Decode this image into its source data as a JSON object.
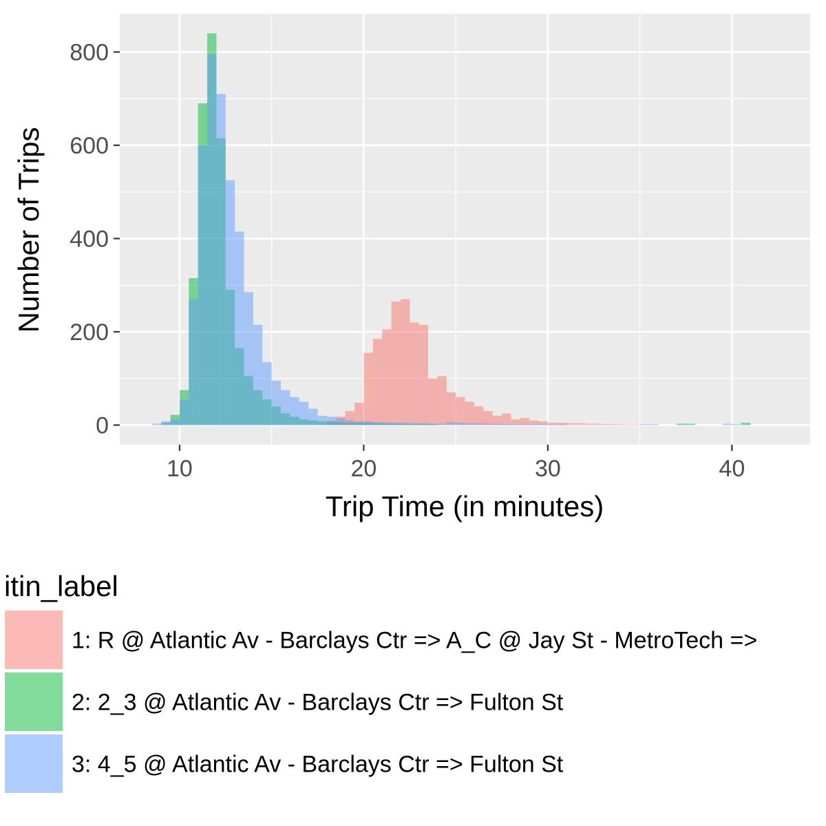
{
  "chart_data": {
    "type": "histogram",
    "title": "",
    "xlabel": "Trip Time (in minutes)",
    "ylabel": "Number of Trips",
    "xlim": [
      6.75,
      44.25
    ],
    "ylim": [
      -42,
      882
    ],
    "x_ticks": [
      10,
      20,
      30,
      40
    ],
    "y_ticks": [
      0,
      200,
      400,
      600,
      800
    ],
    "grid": true,
    "bin_width": 0.5,
    "legend": {
      "title": "itin_label",
      "placement": "bottom"
    },
    "series": [
      {
        "name": "1: R @ Atlantic Av - Barclays Ctr => A_C @ Jay St - MetroTech =>",
        "color": "#F8766D",
        "bins": [
          [
            18.25,
            10
          ],
          [
            18.75,
            18
          ],
          [
            19.25,
            30
          ],
          [
            19.75,
            48
          ],
          [
            20.25,
            155
          ],
          [
            20.75,
            185
          ],
          [
            21.25,
            205
          ],
          [
            21.75,
            265
          ],
          [
            22.25,
            270
          ],
          [
            22.75,
            220
          ],
          [
            23.25,
            215
          ],
          [
            23.75,
            100
          ],
          [
            24.25,
            105
          ],
          [
            24.75,
            70
          ],
          [
            25.25,
            60
          ],
          [
            25.75,
            50
          ],
          [
            26.25,
            40
          ],
          [
            26.75,
            30
          ],
          [
            27.25,
            20
          ],
          [
            27.75,
            25
          ],
          [
            28.25,
            12
          ],
          [
            28.75,
            15
          ],
          [
            29.25,
            10
          ],
          [
            29.75,
            8
          ],
          [
            30.25,
            5
          ],
          [
            30.75,
            5
          ],
          [
            31.25,
            4
          ],
          [
            31.75,
            4
          ],
          [
            32.25,
            3
          ],
          [
            32.75,
            3
          ],
          [
            33.25,
            2
          ],
          [
            33.75,
            2
          ],
          [
            34.25,
            1
          ],
          [
            34.75,
            1
          ]
        ]
      },
      {
        "name": "2: 2_3 @ Atlantic Av - Barclays Ctr => Fulton St",
        "color": "#00BA38",
        "bins": [
          [
            9.25,
            5
          ],
          [
            9.75,
            22
          ],
          [
            10.25,
            75
          ],
          [
            10.75,
            315
          ],
          [
            11.25,
            690
          ],
          [
            11.75,
            840
          ],
          [
            12.25,
            615
          ],
          [
            12.75,
            290
          ],
          [
            13.25,
            165
          ],
          [
            13.75,
            105
          ],
          [
            14.25,
            75
          ],
          [
            14.75,
            55
          ],
          [
            15.25,
            40
          ],
          [
            15.75,
            25
          ],
          [
            16.25,
            18
          ],
          [
            16.75,
            12
          ],
          [
            17.25,
            10
          ],
          [
            17.75,
            8
          ],
          [
            18.25,
            7
          ],
          [
            18.75,
            6
          ],
          [
            19.25,
            5
          ],
          [
            19.75,
            5
          ],
          [
            20.25,
            4
          ],
          [
            20.75,
            4
          ],
          [
            21.25,
            3
          ],
          [
            21.75,
            3
          ],
          [
            22.25,
            2
          ],
          [
            22.75,
            2
          ],
          [
            23.25,
            2
          ],
          [
            23.75,
            1
          ],
          [
            37.25,
            3
          ],
          [
            37.75,
            3
          ],
          [
            40.75,
            5
          ]
        ]
      },
      {
        "name": "3: 4_5 @ Atlantic Av - Barclays Ctr => Fulton St",
        "color": "#619CFF",
        "bins": [
          [
            8.75,
            3
          ],
          [
            9.25,
            8
          ],
          [
            9.75,
            12
          ],
          [
            10.25,
            55
          ],
          [
            10.75,
            270
          ],
          [
            11.25,
            600
          ],
          [
            11.75,
            795
          ],
          [
            12.25,
            710
          ],
          [
            12.75,
            525
          ],
          [
            13.25,
            415
          ],
          [
            13.75,
            285
          ],
          [
            14.25,
            215
          ],
          [
            14.75,
            135
          ],
          [
            15.25,
            95
          ],
          [
            15.75,
            75
          ],
          [
            16.25,
            60
          ],
          [
            16.75,
            50
          ],
          [
            17.25,
            35
          ],
          [
            17.75,
            20
          ],
          [
            18.25,
            18
          ],
          [
            18.75,
            15
          ],
          [
            19.25,
            10
          ],
          [
            19.75,
            8
          ],
          [
            20.25,
            8
          ],
          [
            20.75,
            6
          ],
          [
            21.25,
            6
          ],
          [
            21.75,
            5
          ],
          [
            22.25,
            5
          ],
          [
            22.75,
            4
          ],
          [
            23.25,
            4
          ],
          [
            23.75,
            3
          ],
          [
            24.25,
            3
          ],
          [
            24.75,
            6
          ],
          [
            25.25,
            5
          ],
          [
            25.75,
            4
          ],
          [
            26.25,
            4
          ],
          [
            26.75,
            3
          ],
          [
            27.25,
            3
          ],
          [
            27.75,
            2
          ],
          [
            28.25,
            2
          ],
          [
            28.75,
            2
          ],
          [
            29.25,
            2
          ],
          [
            29.75,
            2
          ],
          [
            30.25,
            1
          ],
          [
            30.75,
            1
          ],
          [
            35.25,
            2
          ],
          [
            35.75,
            2
          ],
          [
            39.75,
            3
          ],
          [
            40.25,
            2
          ]
        ]
      }
    ]
  }
}
